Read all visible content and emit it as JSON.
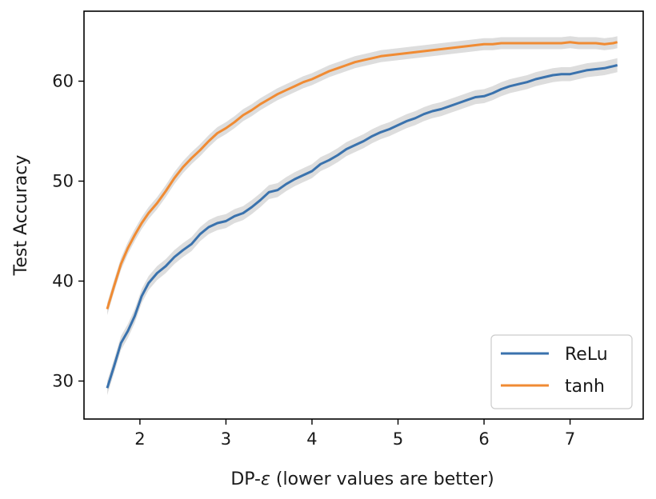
{
  "chart_data": {
    "type": "line",
    "xlabel_prefix": "DP-",
    "xlabel_symbol": "ε",
    "xlabel_suffix": " (lower values are better)",
    "ylabel": "Test Accuracy",
    "xlim": [
      1.35,
      7.85
    ],
    "ylim": [
      26.2,
      67.0
    ],
    "xticks": [
      2,
      3,
      4,
      5,
      6,
      7
    ],
    "yticks": [
      30,
      40,
      50,
      60
    ],
    "legend_position": "lower-right",
    "band_color": "#d9d9d9",
    "series": [
      {
        "name": "ReLu",
        "color": "#3a72ad",
        "band": 0.7,
        "x": [
          1.62,
          1.7,
          1.78,
          1.86,
          1.94,
          2.02,
          2.1,
          2.2,
          2.3,
          2.4,
          2.5,
          2.6,
          2.7,
          2.8,
          2.9,
          3.0,
          3.1,
          3.2,
          3.3,
          3.4,
          3.5,
          3.6,
          3.7,
          3.8,
          3.9,
          4.0,
          4.1,
          4.2,
          4.3,
          4.4,
          4.5,
          4.6,
          4.7,
          4.8,
          4.9,
          5.0,
          5.1,
          5.2,
          5.3,
          5.4,
          5.5,
          5.6,
          5.7,
          5.8,
          5.9,
          6.0,
          6.1,
          6.2,
          6.3,
          6.4,
          6.5,
          6.6,
          6.7,
          6.8,
          6.9,
          7.0,
          7.1,
          7.2,
          7.3,
          7.4,
          7.5,
          7.55
        ],
        "values": [
          29.3,
          31.5,
          33.8,
          35.0,
          36.5,
          38.5,
          39.8,
          40.8,
          41.5,
          42.4,
          43.1,
          43.7,
          44.7,
          45.4,
          45.8,
          46.0,
          46.5,
          46.8,
          47.4,
          48.1,
          48.9,
          49.1,
          49.7,
          50.2,
          50.6,
          51.0,
          51.7,
          52.1,
          52.6,
          53.2,
          53.6,
          54.0,
          54.5,
          54.9,
          55.2,
          55.6,
          56.0,
          56.3,
          56.7,
          57.0,
          57.2,
          57.5,
          57.8,
          58.1,
          58.4,
          58.5,
          58.8,
          59.2,
          59.5,
          59.7,
          59.9,
          60.2,
          60.4,
          60.6,
          60.7,
          60.7,
          60.9,
          61.1,
          61.2,
          61.3,
          61.5,
          61.6
        ]
      },
      {
        "name": "tanh",
        "color": "#f08b33",
        "band": 0.6,
        "x": [
          1.62,
          1.7,
          1.78,
          1.86,
          1.94,
          2.02,
          2.1,
          2.2,
          2.3,
          2.4,
          2.5,
          2.6,
          2.7,
          2.8,
          2.9,
          3.0,
          3.1,
          3.2,
          3.3,
          3.4,
          3.5,
          3.6,
          3.7,
          3.8,
          3.9,
          4.0,
          4.1,
          4.2,
          4.3,
          4.4,
          4.5,
          4.6,
          4.7,
          4.8,
          4.9,
          5.0,
          5.1,
          5.2,
          5.3,
          5.4,
          5.5,
          5.6,
          5.7,
          5.8,
          5.9,
          6.0,
          6.1,
          6.2,
          6.3,
          6.4,
          6.5,
          6.6,
          6.7,
          6.8,
          6.9,
          7.0,
          7.1,
          7.2,
          7.3,
          7.4,
          7.5,
          7.55
        ],
        "values": [
          37.2,
          39.5,
          41.7,
          43.3,
          44.6,
          45.8,
          46.8,
          47.8,
          49.0,
          50.3,
          51.4,
          52.3,
          53.1,
          54.0,
          54.8,
          55.3,
          55.9,
          56.6,
          57.1,
          57.7,
          58.2,
          58.7,
          59.1,
          59.5,
          59.9,
          60.2,
          60.6,
          61.0,
          61.3,
          61.6,
          61.9,
          62.1,
          62.3,
          62.5,
          62.6,
          62.7,
          62.8,
          62.9,
          63.0,
          63.1,
          63.2,
          63.3,
          63.4,
          63.5,
          63.6,
          63.7,
          63.7,
          63.8,
          63.8,
          63.8,
          63.8,
          63.8,
          63.8,
          63.8,
          63.8,
          63.9,
          63.8,
          63.8,
          63.8,
          63.7,
          63.8,
          63.9
        ]
      }
    ]
  }
}
